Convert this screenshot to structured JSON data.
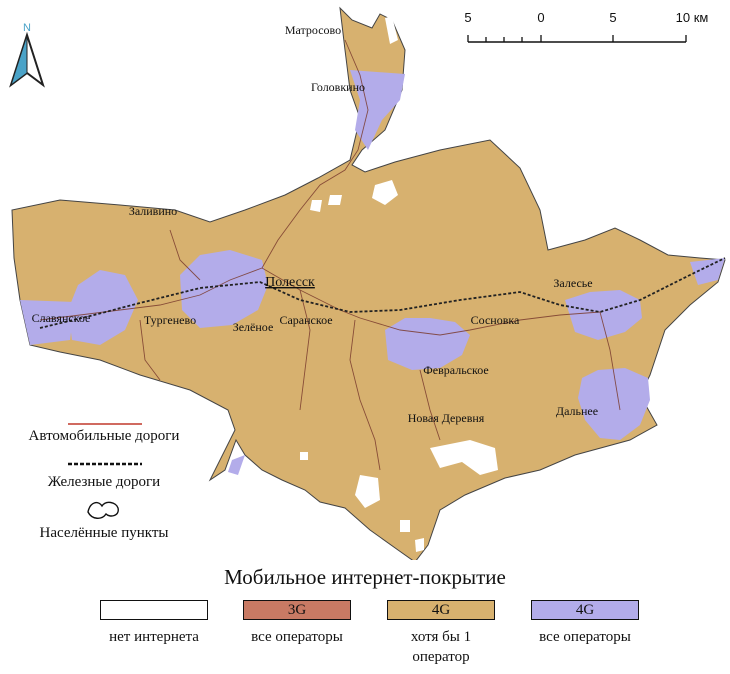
{
  "north": {
    "letter": "N"
  },
  "scale": {
    "labels": [
      "5",
      "0",
      "5",
      "10 км"
    ]
  },
  "city": "Полесск",
  "settlements": [
    "Матросово",
    "Головкино",
    "Заливино",
    "Славянское",
    "Тургенево",
    "Зелёное",
    "Саранское",
    "Сосновка",
    "Февральское",
    "Новая Деревня",
    "Залесье",
    "Дальнее"
  ],
  "legend_lines": {
    "roads": "Автомобильные дороги",
    "railways": "Железные дороги",
    "settlements": "Населённые пункты"
  },
  "coverage_legend": {
    "title": "Мобильное интернет-покрытие",
    "items": [
      {
        "box": "",
        "caption": "нет интернета",
        "color": "#ffffff"
      },
      {
        "box": "3G",
        "caption": "все операторы",
        "color": "#c87a64"
      },
      {
        "box": "4G",
        "caption": "хотя бы 1 оператор",
        "color": "#d7b16f"
      },
      {
        "box": "4G",
        "caption": "все операторы",
        "color": "#b3acea"
      }
    ]
  },
  "colors": {
    "land": "#d7b16f",
    "four_g_all": "#b3acea",
    "road": "#c0392b",
    "boundary": "#333333"
  }
}
